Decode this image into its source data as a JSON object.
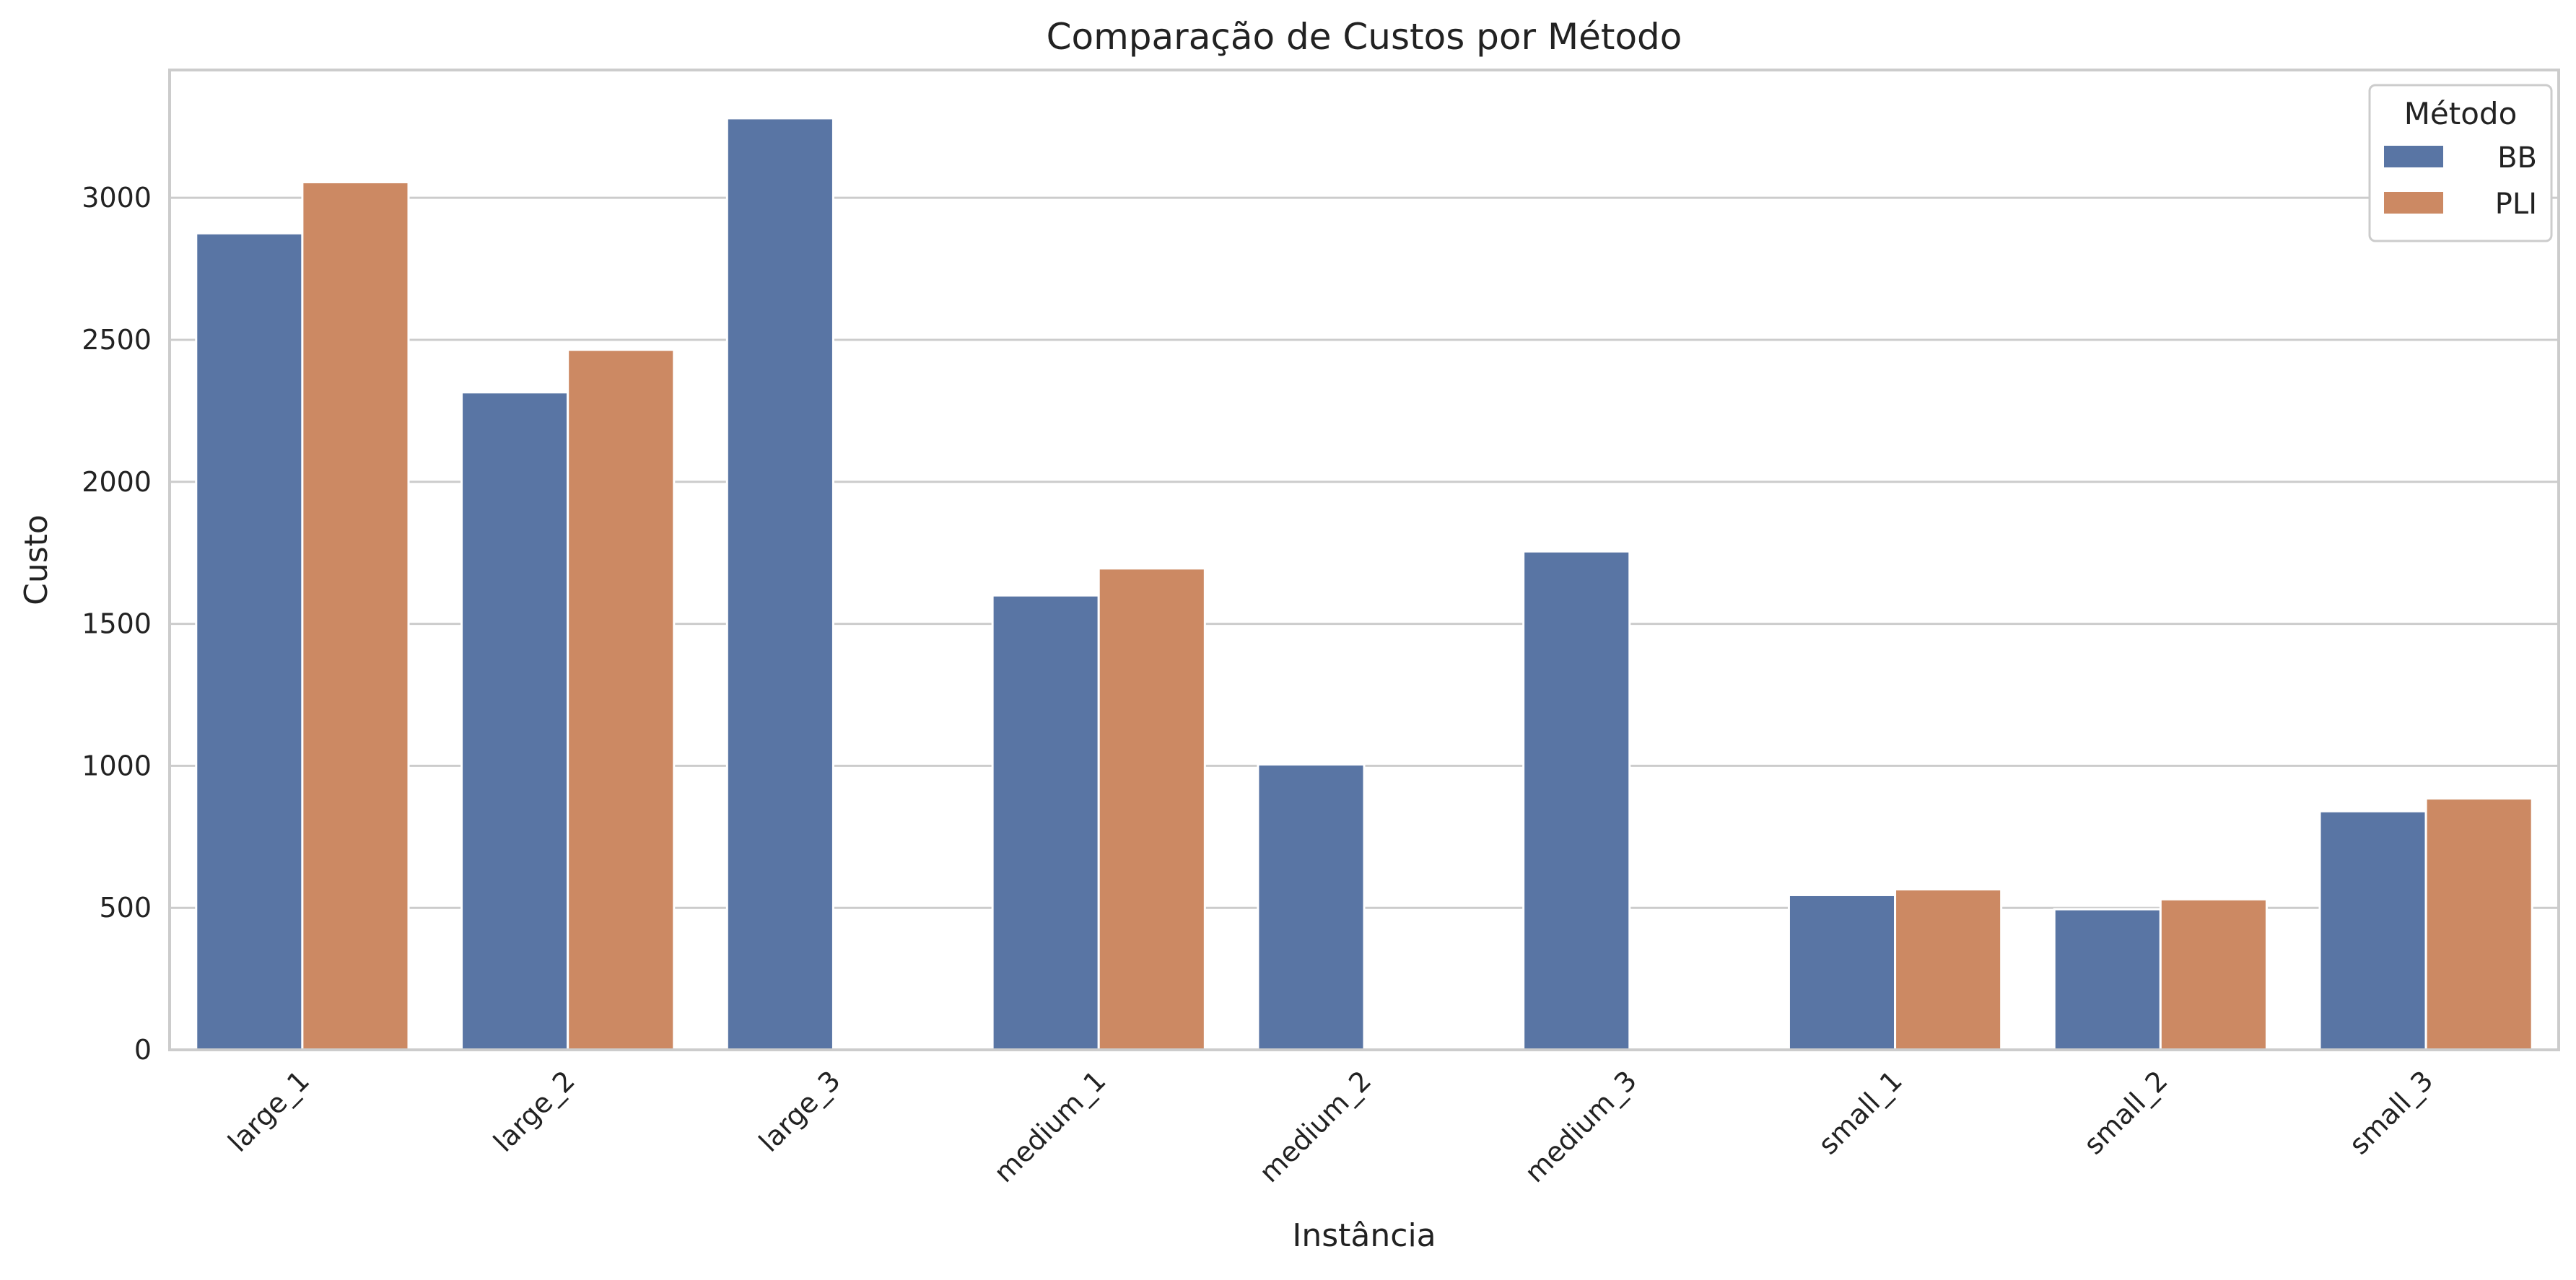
{
  "chart_data": {
    "type": "bar",
    "title": "Comparação de Custos por Método",
    "xlabel": "Instância",
    "ylabel": "Custo",
    "categories": [
      "large_1",
      "large_2",
      "large_3",
      "medium_1",
      "medium_2",
      "medium_3",
      "small_1",
      "small_2",
      "small_3"
    ],
    "series": [
      {
        "name": "BB",
        "color": "#5975a4",
        "values": [
          2875,
          2315,
          3280,
          1600,
          1005,
          1755,
          545,
          495,
          840
        ]
      },
      {
        "name": "PLI",
        "color": "#cc8963",
        "values": [
          3055,
          2465,
          null,
          1695,
          null,
          null,
          565,
          530,
          885
        ]
      }
    ],
    "ylim": [
      0,
      3450
    ],
    "yticks": [
      0,
      500,
      1000,
      1500,
      2000,
      2500,
      3000
    ],
    "grid": "horizontal",
    "legend": {
      "title": "Método",
      "placement": "top-right"
    }
  }
}
